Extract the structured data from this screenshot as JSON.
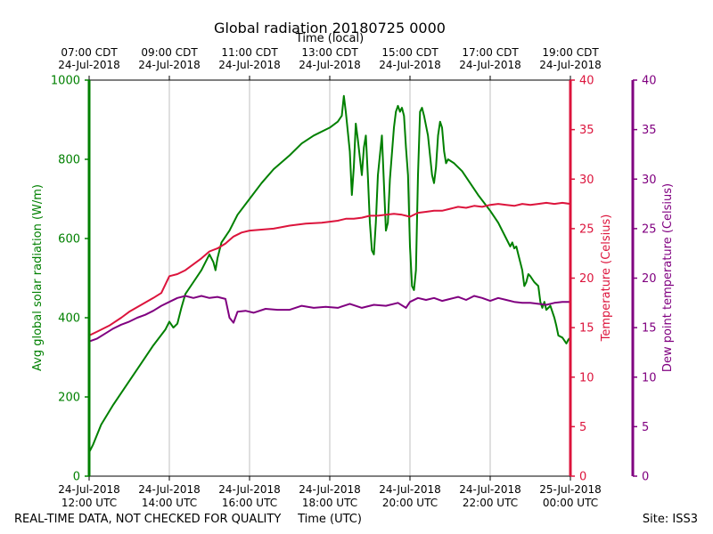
{
  "chart_data": {
    "type": "line",
    "title": "Global radiation 20180725 0000",
    "top_axis_label": "Time (local)",
    "xlabel": "Time (UTC)",
    "footer_left": "REAL-TIME DATA, NOT CHECKED FOR QUALITY",
    "footer_right": "Site: ISS3",
    "xlim_utc_hours": [
      12,
      24
    ],
    "bottom_ticks": [
      {
        "x": 12,
        "line1": "24-Jul-2018",
        "line2": "12:00 UTC"
      },
      {
        "x": 14,
        "line1": "24-Jul-2018",
        "line2": "14:00 UTC"
      },
      {
        "x": 16,
        "line1": "24-Jul-2018",
        "line2": "16:00 UTC"
      },
      {
        "x": 18,
        "line1": "24-Jul-2018",
        "line2": "18:00 UTC"
      },
      {
        "x": 20,
        "line1": "24-Jul-2018",
        "line2": "20:00 UTC"
      },
      {
        "x": 22,
        "line1": "24-Jul-2018",
        "line2": "22:00 UTC"
      },
      {
        "x": 24,
        "line1": "25-Jul-2018",
        "line2": "00:00 UTC"
      }
    ],
    "top_ticks": [
      {
        "x": 12,
        "line1": "07:00 CDT",
        "line2": "24-Jul-2018"
      },
      {
        "x": 14,
        "line1": "09:00 CDT",
        "line2": "24-Jul-2018"
      },
      {
        "x": 16,
        "line1": "11:00 CDT",
        "line2": "24-Jul-2018"
      },
      {
        "x": 18,
        "line1": "13:00 CDT",
        "line2": "24-Jul-2018"
      },
      {
        "x": 20,
        "line1": "15:00 CDT",
        "line2": "24-Jul-2018"
      },
      {
        "x": 22,
        "line1": "17:00 CDT",
        "line2": "24-Jul-2018"
      },
      {
        "x": 24,
        "line1": "19:00 CDT",
        "line2": "24-Jul-2018"
      }
    ],
    "grid_x": true,
    "y_axes": [
      {
        "id": "radiation",
        "label": "Avg global solar radiation (W/m)",
        "ylim": [
          0,
          1000
        ],
        "ticks": [
          0,
          200,
          400,
          600,
          800,
          1000
        ],
        "color": "#008000",
        "side": "left"
      },
      {
        "id": "temperature",
        "label": "Temperature (Celsius)",
        "ylim": [
          0,
          40
        ],
        "ticks": [
          0,
          5,
          10,
          15,
          20,
          25,
          30,
          35,
          40
        ],
        "color": "#dc143c",
        "side": "right"
      },
      {
        "id": "dewpoint",
        "label": "Dew point temperature (Celsius)",
        "ylim": [
          0,
          40
        ],
        "ticks": [
          0,
          5,
          10,
          15,
          20,
          25,
          30,
          35,
          40
        ],
        "color": "#800080",
        "side": "right-outer"
      }
    ],
    "series": [
      {
        "axis": "radiation",
        "color": "#008000",
        "points": [
          [
            12.0,
            60
          ],
          [
            12.1,
            80
          ],
          [
            12.3,
            130
          ],
          [
            12.6,
            180
          ],
          [
            13.0,
            240
          ],
          [
            13.3,
            285
          ],
          [
            13.6,
            330
          ],
          [
            13.9,
            370
          ],
          [
            14.0,
            390
          ],
          [
            14.1,
            375
          ],
          [
            14.2,
            385
          ],
          [
            14.3,
            425
          ],
          [
            14.4,
            460
          ],
          [
            14.6,
            490
          ],
          [
            14.8,
            520
          ],
          [
            15.0,
            560
          ],
          [
            15.1,
            540
          ],
          [
            15.15,
            520
          ],
          [
            15.2,
            550
          ],
          [
            15.3,
            590
          ],
          [
            15.5,
            620
          ],
          [
            15.7,
            660
          ],
          [
            16.0,
            700
          ],
          [
            16.3,
            740
          ],
          [
            16.6,
            775
          ],
          [
            17.0,
            810
          ],
          [
            17.3,
            840
          ],
          [
            17.6,
            860
          ],
          [
            18.0,
            880
          ],
          [
            18.2,
            895
          ],
          [
            18.3,
            910
          ],
          [
            18.35,
            960
          ],
          [
            18.4,
            920
          ],
          [
            18.5,
            820
          ],
          [
            18.55,
            710
          ],
          [
            18.6,
            780
          ],
          [
            18.65,
            890
          ],
          [
            18.7,
            850
          ],
          [
            18.8,
            760
          ],
          [
            18.85,
            830
          ],
          [
            18.9,
            860
          ],
          [
            18.95,
            760
          ],
          [
            19.0,
            640
          ],
          [
            19.05,
            570
          ],
          [
            19.1,
            560
          ],
          [
            19.15,
            640
          ],
          [
            19.2,
            760
          ],
          [
            19.3,
            860
          ],
          [
            19.4,
            620
          ],
          [
            19.45,
            640
          ],
          [
            19.5,
            750
          ],
          [
            19.6,
            880
          ],
          [
            19.65,
            920
          ],
          [
            19.7,
            935
          ],
          [
            19.75,
            920
          ],
          [
            19.8,
            930
          ],
          [
            19.85,
            910
          ],
          [
            19.9,
            830
          ],
          [
            19.95,
            760
          ],
          [
            20.0,
            580
          ],
          [
            20.05,
            480
          ],
          [
            20.1,
            470
          ],
          [
            20.15,
            520
          ],
          [
            20.2,
            760
          ],
          [
            20.25,
            920
          ],
          [
            20.3,
            930
          ],
          [
            20.35,
            910
          ],
          [
            20.45,
            860
          ],
          [
            20.55,
            760
          ],
          [
            20.6,
            740
          ],
          [
            20.65,
            780
          ],
          [
            20.7,
            860
          ],
          [
            20.75,
            895
          ],
          [
            20.8,
            880
          ],
          [
            20.85,
            820
          ],
          [
            20.9,
            790
          ],
          [
            20.95,
            800
          ],
          [
            21.1,
            790
          ],
          [
            21.3,
            770
          ],
          [
            21.5,
            740
          ],
          [
            21.7,
            710
          ],
          [
            22.0,
            670
          ],
          [
            22.2,
            640
          ],
          [
            22.4,
            600
          ],
          [
            22.5,
            580
          ],
          [
            22.55,
            590
          ],
          [
            22.6,
            575
          ],
          [
            22.65,
            580
          ],
          [
            22.7,
            560
          ],
          [
            22.8,
            520
          ],
          [
            22.85,
            480
          ],
          [
            22.9,
            490
          ],
          [
            22.95,
            510
          ],
          [
            23.0,
            505
          ],
          [
            23.1,
            490
          ],
          [
            23.2,
            480
          ],
          [
            23.25,
            440
          ],
          [
            23.3,
            425
          ],
          [
            23.35,
            440
          ],
          [
            23.4,
            420
          ],
          [
            23.45,
            425
          ],
          [
            23.5,
            430
          ],
          [
            23.6,
            400
          ],
          [
            23.65,
            380
          ],
          [
            23.7,
            355
          ],
          [
            23.8,
            350
          ],
          [
            23.9,
            335
          ],
          [
            23.95,
            345
          ],
          [
            24.0,
            350
          ],
          [
            24.1,
            340
          ],
          [
            24.2,
            330
          ],
          [
            24.3,
            320
          ]
        ]
      },
      {
        "axis": "temperature",
        "color": "#dc143c",
        "points": [
          [
            12.0,
            14.2
          ],
          [
            12.2,
            14.6
          ],
          [
            12.5,
            15.2
          ],
          [
            12.8,
            16.0
          ],
          [
            13.0,
            16.6
          ],
          [
            13.3,
            17.3
          ],
          [
            13.6,
            18.0
          ],
          [
            13.8,
            18.5
          ],
          [
            14.0,
            20.2
          ],
          [
            14.2,
            20.4
          ],
          [
            14.4,
            20.8
          ],
          [
            14.6,
            21.4
          ],
          [
            14.8,
            22.0
          ],
          [
            15.0,
            22.7
          ],
          [
            15.2,
            23.0
          ],
          [
            15.4,
            23.5
          ],
          [
            15.6,
            24.2
          ],
          [
            15.8,
            24.6
          ],
          [
            16.0,
            24.8
          ],
          [
            16.3,
            24.9
          ],
          [
            16.6,
            25.0
          ],
          [
            17.0,
            25.3
          ],
          [
            17.4,
            25.5
          ],
          [
            17.8,
            25.6
          ],
          [
            18.0,
            25.7
          ],
          [
            18.2,
            25.8
          ],
          [
            18.4,
            26.0
          ],
          [
            18.6,
            26.0
          ],
          [
            18.8,
            26.1
          ],
          [
            19.0,
            26.3
          ],
          [
            19.2,
            26.3
          ],
          [
            19.4,
            26.4
          ],
          [
            19.6,
            26.5
          ],
          [
            19.8,
            26.4
          ],
          [
            20.0,
            26.2
          ],
          [
            20.2,
            26.6
          ],
          [
            20.4,
            26.7
          ],
          [
            20.6,
            26.8
          ],
          [
            20.8,
            26.8
          ],
          [
            21.0,
            27.0
          ],
          [
            21.2,
            27.2
          ],
          [
            21.4,
            27.1
          ],
          [
            21.6,
            27.3
          ],
          [
            21.8,
            27.2
          ],
          [
            22.0,
            27.4
          ],
          [
            22.2,
            27.5
          ],
          [
            22.4,
            27.4
          ],
          [
            22.6,
            27.3
          ],
          [
            22.8,
            27.5
          ],
          [
            23.0,
            27.4
          ],
          [
            23.2,
            27.5
          ],
          [
            23.4,
            27.6
          ],
          [
            23.6,
            27.5
          ],
          [
            23.8,
            27.6
          ],
          [
            24.0,
            27.5
          ],
          [
            24.2,
            27.5
          ],
          [
            24.4,
            27.4
          ]
        ]
      },
      {
        "axis": "dewpoint",
        "color": "#800080",
        "points": [
          [
            12.0,
            13.6
          ],
          [
            12.2,
            13.9
          ],
          [
            12.4,
            14.4
          ],
          [
            12.6,
            14.9
          ],
          [
            12.8,
            15.3
          ],
          [
            13.0,
            15.6
          ],
          [
            13.2,
            16.0
          ],
          [
            13.4,
            16.3
          ],
          [
            13.6,
            16.7
          ],
          [
            13.8,
            17.2
          ],
          [
            14.0,
            17.6
          ],
          [
            14.2,
            18.0
          ],
          [
            14.4,
            18.2
          ],
          [
            14.6,
            18.0
          ],
          [
            14.8,
            18.2
          ],
          [
            15.0,
            18.0
          ],
          [
            15.2,
            18.1
          ],
          [
            15.4,
            17.9
          ],
          [
            15.5,
            16.0
          ],
          [
            15.6,
            15.5
          ],
          [
            15.7,
            16.6
          ],
          [
            15.9,
            16.7
          ],
          [
            16.1,
            16.5
          ],
          [
            16.4,
            16.9
          ],
          [
            16.7,
            16.8
          ],
          [
            17.0,
            16.8
          ],
          [
            17.3,
            17.2
          ],
          [
            17.6,
            17.0
          ],
          [
            17.9,
            17.1
          ],
          [
            18.2,
            17.0
          ],
          [
            18.5,
            17.4
          ],
          [
            18.8,
            17.0
          ],
          [
            19.1,
            17.3
          ],
          [
            19.4,
            17.2
          ],
          [
            19.7,
            17.5
          ],
          [
            19.9,
            17.0
          ],
          [
            20.0,
            17.6
          ],
          [
            20.2,
            18.0
          ],
          [
            20.4,
            17.8
          ],
          [
            20.6,
            18.0
          ],
          [
            20.8,
            17.7
          ],
          [
            21.0,
            17.9
          ],
          [
            21.2,
            18.1
          ],
          [
            21.4,
            17.8
          ],
          [
            21.6,
            18.2
          ],
          [
            21.8,
            18.0
          ],
          [
            22.0,
            17.7
          ],
          [
            22.2,
            18.0
          ],
          [
            22.4,
            17.8
          ],
          [
            22.6,
            17.6
          ],
          [
            22.8,
            17.5
          ],
          [
            23.0,
            17.5
          ],
          [
            23.2,
            17.4
          ],
          [
            23.4,
            17.3
          ],
          [
            23.6,
            17.5
          ],
          [
            23.8,
            17.6
          ],
          [
            24.0,
            17.6
          ],
          [
            24.2,
            17.8
          ],
          [
            24.4,
            17.4
          ]
        ]
      }
    ]
  }
}
